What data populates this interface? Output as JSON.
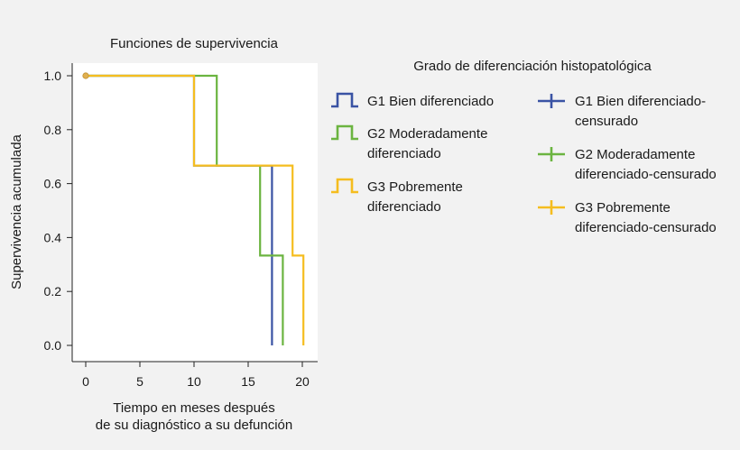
{
  "chart_data": {
    "type": "line",
    "step": true,
    "title": "Funciones de supervivencia",
    "xlabel": [
      "Tiempo en meses después",
      "de su diagnóstico a su defunción"
    ],
    "ylabel": "Supervivencia acumulada",
    "xlim": [
      0,
      20
    ],
    "ylim": [
      0,
      1
    ],
    "x_ticks": [
      0,
      5,
      10,
      15,
      20
    ],
    "y_ticks": [
      0.0,
      0.2,
      0.4,
      0.6,
      0.8,
      1.0
    ],
    "y_tick_labels": [
      "0.0",
      "0.2",
      "0.4",
      "0.6",
      "0.8",
      "1.0"
    ],
    "grid": false,
    "legend_title": "Grado de diferenciación histopatológica",
    "legend_position": "right",
    "series": [
      {
        "name": [
          "G1 Bien diferenciado"
        ],
        "censored_name": [
          "G1 Bien diferenciado-",
          "censurado"
        ],
        "color": "#3a53a4",
        "points": [
          [
            0,
            1.0
          ],
          [
            10,
            1.0
          ],
          [
            10,
            0.667
          ],
          [
            17.2,
            0.667
          ],
          [
            17.2,
            0.0
          ]
        ]
      },
      {
        "name": [
          "G2 Moderadamente",
          "diferenciado"
        ],
        "censored_name": [
          "G2 Moderadamente",
          "diferenciado-censurado"
        ],
        "color": "#6bb440",
        "points": [
          [
            0,
            1.0
          ],
          [
            12.1,
            1.0
          ],
          [
            12.1,
            0.667
          ],
          [
            16.1,
            0.667
          ],
          [
            16.1,
            0.333
          ],
          [
            18.2,
            0.333
          ],
          [
            18.2,
            0.0
          ]
        ]
      },
      {
        "name": [
          "G3 Pobremente",
          "diferenciado"
        ],
        "censored_name": [
          "G3 Pobremente",
          "diferenciado-censurado"
        ],
        "color": "#f5bd1f",
        "points": [
          [
            0,
            1.0
          ],
          [
            10,
            1.0
          ],
          [
            10,
            0.667
          ],
          [
            19.1,
            0.667
          ],
          [
            19.1,
            0.333
          ],
          [
            20.1,
            0.333
          ],
          [
            20.1,
            0.0
          ]
        ]
      }
    ],
    "start_marker": {
      "x": 0,
      "y": 1.0,
      "color": "#e0b050"
    }
  }
}
